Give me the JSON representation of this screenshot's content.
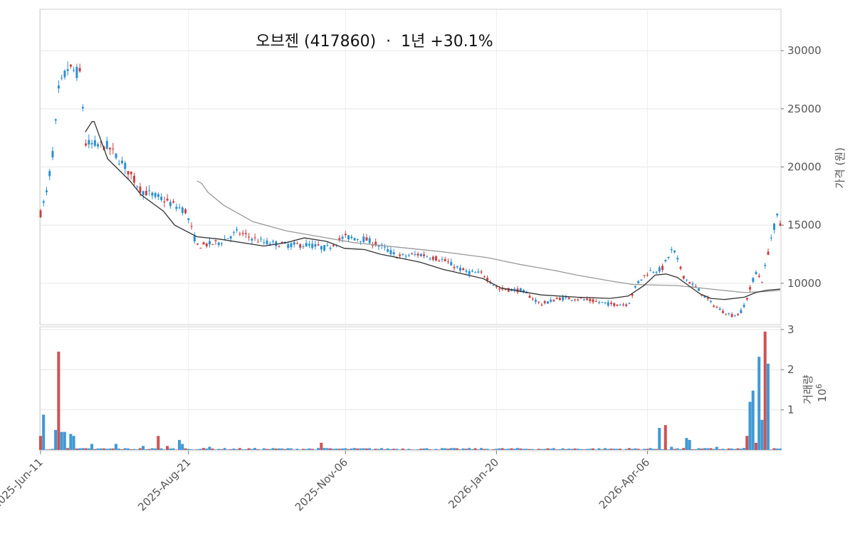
{
  "chart_data": {
    "type": "candlestick",
    "title": "오브젠 (417860)  ·  1년 +30.1%",
    "price_axis": {
      "label": "가격 (원)",
      "ticks": [
        10000,
        15000,
        20000,
        25000,
        30000
      ],
      "tick_labels": [
        "10000",
        "15000",
        "20000",
        "25000",
        "30000"
      ],
      "range": [
        6500,
        33500
      ]
    },
    "volume_axis": {
      "label": "거래량",
      "multiplier_label": "10",
      "multiplier_exponent": "6",
      "ticks": [
        1,
        2,
        3
      ],
      "tick_labels": [
        "1",
        "2",
        "3"
      ],
      "range": [
        0,
        3.05
      ]
    },
    "x_axis": {
      "tick_labels": [
        "2025-Jun-11",
        "2025-Aug-21",
        "2025-Nov-06",
        "2026-Jan-20",
        "2026-Apr-06"
      ],
      "tick_index": [
        0,
        49,
        101,
        151,
        201
      ],
      "count": 246
    },
    "grid": true,
    "colors": {
      "up": "#c94040",
      "down": "#2b8fd0",
      "ma_short": "#333333",
      "ma_long": "#999999"
    },
    "anchors": [
      [
        0,
        16000
      ],
      [
        3,
        18000
      ],
      [
        6,
        22000
      ],
      [
        8,
        26500
      ],
      [
        12,
        28500
      ],
      [
        18,
        28000
      ],
      [
        20,
        22000
      ],
      [
        30,
        21800
      ],
      [
        38,
        20000
      ],
      [
        45,
        18000
      ],
      [
        55,
        17200
      ],
      [
        65,
        16200
      ],
      [
        70,
        13200
      ],
      [
        80,
        13500
      ],
      [
        88,
        14400
      ],
      [
        100,
        13500
      ],
      [
        110,
        13300
      ],
      [
        120,
        13300
      ],
      [
        128,
        13000
      ],
      [
        136,
        14000
      ],
      [
        145,
        13800
      ],
      [
        152,
        13200
      ],
      [
        160,
        12300
      ],
      [
        170,
        12500
      ],
      [
        180,
        12000
      ],
      [
        190,
        11000
      ],
      [
        198,
        10800
      ],
      [
        205,
        9500
      ],
      [
        215,
        9400
      ],
      [
        224,
        8200
      ],
      [
        232,
        8700
      ],
      [
        240,
        8700
      ],
      [
        246,
        8500
      ],
      [
        255,
        8200
      ],
      [
        263,
        8200
      ],
      [
        267,
        10000
      ],
      [
        272,
        11000
      ],
      [
        278,
        11200
      ],
      [
        283,
        13000
      ],
      [
        288,
        10500
      ],
      [
        294,
        9500
      ],
      [
        300,
        8300
      ],
      [
        305,
        7600
      ],
      [
        310,
        7200
      ],
      [
        313,
        7400
      ],
      [
        316,
        8600
      ],
      [
        320,
        11000
      ],
      [
        323,
        10200
      ],
      [
        327,
        14000
      ],
      [
        330,
        16000
      ],
      [
        331,
        15000
      ]
    ],
    "ma_short": [
      [
        20,
        23000
      ],
      [
        23,
        23900
      ],
      [
        24,
        23900
      ],
      [
        30,
        20700
      ],
      [
        40,
        18800
      ],
      [
        45,
        17600
      ],
      [
        55,
        16200
      ],
      [
        60,
        15000
      ],
      [
        70,
        14000
      ],
      [
        80,
        13800
      ],
      [
        100,
        13200
      ],
      [
        110,
        13500
      ],
      [
        118,
        13900
      ],
      [
        128,
        13600
      ],
      [
        136,
        13000
      ],
      [
        145,
        12900
      ],
      [
        152,
        12500
      ],
      [
        160,
        12200
      ],
      [
        170,
        11800
      ],
      [
        180,
        11200
      ],
      [
        198,
        10400
      ],
      [
        206,
        9600
      ],
      [
        215,
        9300
      ],
      [
        224,
        9000
      ],
      [
        240,
        8800
      ],
      [
        255,
        8700
      ],
      [
        263,
        8900
      ],
      [
        270,
        9800
      ],
      [
        275,
        10700
      ],
      [
        280,
        10800
      ],
      [
        285,
        10500
      ],
      [
        290,
        9800
      ],
      [
        295,
        9100
      ],
      [
        300,
        8700
      ],
      [
        306,
        8600
      ],
      [
        315,
        8800
      ],
      [
        320,
        9200
      ],
      [
        325,
        9400
      ],
      [
        331,
        9500
      ]
    ],
    "ma_long": [
      [
        70,
        18800
      ],
      [
        72,
        18600
      ],
      [
        75,
        17800
      ],
      [
        82,
        16700
      ],
      [
        95,
        15300
      ],
      [
        110,
        14500
      ],
      [
        125,
        14000
      ],
      [
        140,
        13500
      ],
      [
        160,
        13100
      ],
      [
        180,
        12700
      ],
      [
        200,
        12200
      ],
      [
        215,
        11600
      ],
      [
        230,
        11100
      ],
      [
        240,
        10700
      ],
      [
        255,
        10200
      ],
      [
        265,
        9900
      ],
      [
        285,
        9800
      ],
      [
        300,
        9500
      ],
      [
        315,
        9200
      ],
      [
        325,
        9300
      ],
      [
        331,
        9400
      ]
    ],
    "volume_events": [
      [
        0,
        0.35
      ],
      [
        1,
        0.88
      ],
      [
        5,
        0.5
      ],
      [
        6,
        2.45
      ],
      [
        7,
        0.45
      ],
      [
        8,
        0.45
      ],
      [
        10,
        0.4
      ],
      [
        11,
        0.35
      ],
      [
        17,
        0.15
      ],
      [
        25,
        0.15
      ],
      [
        34,
        0.1
      ],
      [
        39,
        0.35
      ],
      [
        42,
        0.1
      ],
      [
        46,
        0.25
      ],
      [
        47,
        0.15
      ],
      [
        56,
        0.08
      ],
      [
        93,
        0.18
      ],
      [
        94,
        0.05
      ],
      [
        205,
        0.55
      ],
      [
        207,
        0.62
      ],
      [
        209,
        0.08
      ],
      [
        214,
        0.3
      ],
      [
        215,
        0.25
      ],
      [
        224,
        0.08
      ],
      [
        234,
        0.35
      ],
      [
        235,
        1.2
      ],
      [
        236,
        1.48
      ],
      [
        237,
        0.18
      ],
      [
        238,
        2.32
      ],
      [
        239,
        0.75
      ],
      [
        240,
        2.95
      ],
      [
        241,
        2.15
      ]
    ]
  }
}
